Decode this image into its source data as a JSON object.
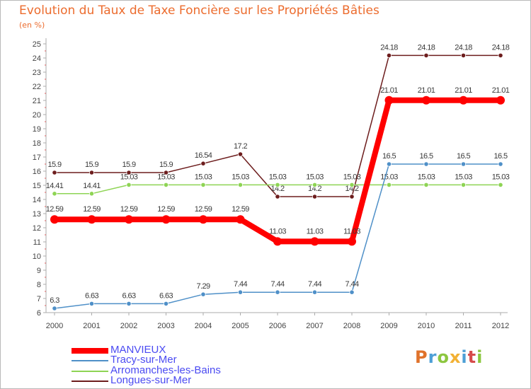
{
  "title": "Evolution du Taux de Taxe Foncière sur les Propriétés Bâties",
  "unit_label": "(en %)",
  "logo_text": "Proxiti",
  "logo_colors": [
    "#e0722b",
    "#4d9fd6",
    "#8cc63f",
    "#f2b134",
    "#4d9fd6",
    "#d64b4b",
    "#8cc63f"
  ],
  "chart_data": {
    "type": "line",
    "title": "Evolution du Taux de Taxe Foncière sur les Propriétés Bâties",
    "ylabel": "(en %)",
    "xlabel": "",
    "ylim": [
      6,
      25
    ],
    "yticks": [
      6,
      7,
      8,
      9,
      10,
      11,
      12,
      13,
      14,
      15,
      16,
      17,
      18,
      19,
      20,
      21,
      22,
      23,
      24,
      25
    ],
    "categories": [
      "2000",
      "2001",
      "2002",
      "2003",
      "2004",
      "2005",
      "2006",
      "2007",
      "2008",
      "2009",
      "2010",
      "2011",
      "2012"
    ],
    "series": [
      {
        "name": "Longues-sur-Mer",
        "color": "#6d1d1d",
        "values": [
          15.9,
          15.9,
          15.9,
          15.9,
          16.54,
          17.2,
          14.2,
          14.2,
          14.2,
          24.18,
          24.18,
          24.18,
          24.18
        ],
        "labels": [
          "15.9",
          "15.9",
          "15.9",
          "15.9",
          "16.54",
          "17.2",
          "14.2",
          "14.2",
          "14.2",
          "24.18",
          "24.18",
          "24.18",
          "24.18"
        ]
      },
      {
        "name": "Arromanches-les-Bains",
        "color": "#8ed454",
        "values": [
          14.41,
          14.41,
          15.03,
          15.03,
          15.03,
          15.03,
          15.03,
          15.03,
          15.03,
          15.03,
          15.03,
          15.03,
          15.03
        ],
        "labels": [
          "14.41",
          "14.41",
          "15.03",
          "15.03",
          "15.03",
          "15.03",
          "15.03",
          "15.03",
          "15.03",
          "15.03",
          "15.03",
          "15.03",
          "15.03"
        ]
      },
      {
        "name": "Tracy-sur-Mer",
        "color": "#4f90c8",
        "values": [
          6.3,
          6.63,
          6.63,
          6.63,
          7.29,
          7.44,
          7.44,
          7.44,
          7.44,
          16.5,
          16.5,
          16.5,
          16.5
        ],
        "labels": [
          "6.3",
          "6.63",
          "6.63",
          "6.63",
          "7.29",
          "7.44",
          "7.44",
          "7.44",
          "7.44",
          "16.5",
          "16.5",
          "16.5",
          "16.5"
        ]
      },
      {
        "name": "MANVIEUX",
        "color": "#ff0000",
        "values": [
          12.59,
          12.59,
          12.59,
          12.59,
          12.59,
          12.59,
          11.03,
          11.03,
          11.03,
          21.01,
          21.01,
          21.01,
          21.01
        ],
        "labels": [
          "12.59",
          "12.59",
          "12.59",
          "12.59",
          "12.59",
          "12.59",
          "11.03",
          "11.03",
          "11.03",
          "21.01",
          "21.01",
          "21.01",
          "21.01"
        ]
      }
    ],
    "legend": [
      "MANVIEUX",
      "Tracy-sur-Mer",
      "Arromanches-les-Bains",
      "Longues-sur-Mer"
    ],
    "legend_position": "bottom-left",
    "grid": false
  }
}
